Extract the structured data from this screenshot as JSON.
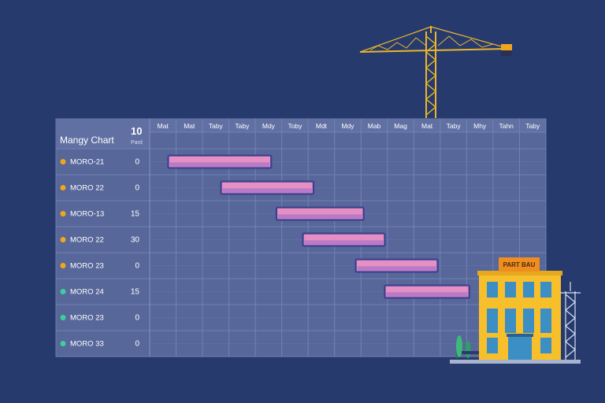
{
  "chart_data": {
    "type": "gantt",
    "title": "Mangy Chart",
    "header_number": "10",
    "header_sublabel": "Pard",
    "columns": [
      "Mat",
      "Mat",
      "Taby",
      "Taby",
      "Mdy",
      "Toby",
      "Mdt",
      "Mdy",
      "Mab",
      "Mag",
      "Mat",
      "Taby",
      "Mhy",
      "Tahn",
      "Taby"
    ],
    "rows": [
      {
        "label": "MORO-21",
        "value": "0",
        "dot": "#f2a71b",
        "start": 0.7,
        "end": 4.6
      },
      {
        "label": "MORO 22",
        "value": "0",
        "dot": "#f2a71b",
        "start": 2.7,
        "end": 6.2
      },
      {
        "label": "MORO-13",
        "value": "15",
        "dot": "#f2a71b",
        "start": 4.8,
        "end": 8.1
      },
      {
        "label": "MORO 22",
        "value": "30",
        "dot": "#f2a71b",
        "start": 5.8,
        "end": 8.9
      },
      {
        "label": "MORO 23",
        "value": "0",
        "dot": "#f2a71b",
        "start": 7.8,
        "end": 10.9
      },
      {
        "label": "MORO 24",
        "value": "15",
        "dot": "#3ecf9a",
        "start": 8.9,
        "end": 12.1
      },
      {
        "label": "MORO 23",
        "value": "0",
        "dot": "#3ecf9a",
        "start": null,
        "end": null
      },
      {
        "label": "MORO 33",
        "value": "0",
        "dot": "#3ecf9a",
        "start": null,
        "end": null
      }
    ],
    "grid": true
  },
  "illustration": {
    "building_sign": "PART BAU",
    "colors": {
      "background": "#263a6e",
      "bar_fill": "#e58fc4",
      "bar_border": "#3a3f8f",
      "crane": "#e9b62c",
      "building": "#f6bf2b"
    }
  }
}
